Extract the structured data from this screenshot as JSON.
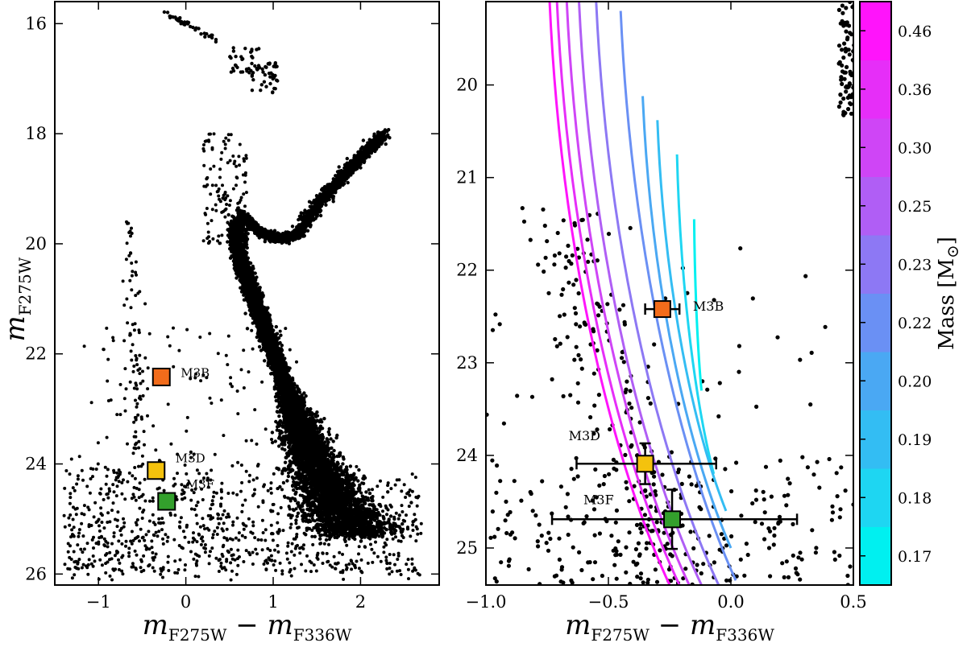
{
  "chart_data": [
    {
      "type": "scatter",
      "panel": "left",
      "xlabel": {
        "main": "m",
        "sub1": "F275W",
        "minus": " − ",
        "main2": "m",
        "sub2": "F336W"
      },
      "ylabel": {
        "main": "m",
        "sub": "F275W"
      },
      "xlim": [
        -1.5,
        2.9
      ],
      "ylim": [
        26.2,
        15.6
      ],
      "y_inverted": true,
      "xticks": [
        "−1",
        "0",
        "1",
        "2"
      ],
      "xtick_values": [
        -1,
        0,
        1,
        2
      ],
      "yticks": [
        "16",
        "18",
        "20",
        "22",
        "24",
        "26"
      ],
      "ytick_values": [
        16,
        18,
        20,
        22,
        24,
        26
      ],
      "series": [
        {
          "kind": "cluster-stars",
          "color": "#000000",
          "features": {
            "main_sequence_turnoff": [
              0.6,
              19.5
            ],
            "red_giant_branch": [
              [
                0.8,
                19.6
              ],
              [
                1.3,
                19.7
              ],
              [
                1.7,
                18.2
              ],
              [
                2.2,
                18.1
              ]
            ],
            "horizontal_branch": [
              [
                -0.6,
                15.8
              ],
              [
                0.3,
                16.3
              ],
              [
                0.6,
                16.6
              ],
              [
                0.9,
                17.2
              ]
            ],
            "main_sequence": [
              [
                0.6,
                19.6
              ],
              [
                0.8,
                21.5
              ],
              [
                1.2,
                23.0
              ],
              [
                1.6,
                24.5
              ],
              [
                1.8,
                25.2
              ]
            ]
          }
        }
      ],
      "annotations": [
        {
          "label": "M3B",
          "x": -0.28,
          "y": 22.42,
          "color": "#f26c1b"
        },
        {
          "label": "M3D",
          "x": -0.34,
          "y": 24.12,
          "color": "#f4c20d"
        },
        {
          "label": "M3F",
          "x": -0.22,
          "y": 24.68,
          "color": "#33a02c"
        }
      ]
    },
    {
      "type": "line",
      "panel": "right",
      "xlabel": {
        "main": "m",
        "sub1": "F275W",
        "minus": " − ",
        "main2": "m",
        "sub2": "F336W"
      },
      "xlim": [
        -1.0,
        0.5
      ],
      "ylim": [
        25.4,
        19.1
      ],
      "y_inverted": true,
      "xticks": [
        "−1.0",
        "−0.5",
        "0.0",
        "0.5"
      ],
      "xtick_values": [
        -1.0,
        -0.5,
        0.0,
        0.5
      ],
      "yticks": [
        "20",
        "21",
        "22",
        "23",
        "24",
        "25"
      ],
      "ytick_values": [
        20,
        21,
        22,
        23,
        24,
        25
      ],
      "tracks": [
        {
          "mass": 0.17,
          "color": "#00f0f0",
          "top": [
            -0.15,
            21.45
          ],
          "bottom": [
            -0.12,
            23.3
          ]
        },
        {
          "mass": 0.18,
          "color": "#1ed6f2",
          "top": [
            -0.22,
            20.75
          ],
          "bottom": [
            -0.07,
            24.2
          ]
        },
        {
          "mass": 0.19,
          "color": "#33bdf3",
          "top": [
            -0.3,
            20.38
          ],
          "bottom": [
            -0.02,
            24.6
          ]
        },
        {
          "mass": 0.2,
          "color": "#4aa8f3",
          "top": [
            -0.36,
            20.12
          ],
          "bottom": [
            0.0,
            25.0
          ]
        },
        {
          "mass": 0.22,
          "color": "#6a90f4",
          "top": [
            -0.45,
            19.2
          ],
          "bottom": [
            0.02,
            25.35
          ]
        },
        {
          "mass": 0.23,
          "color": "#8d78f4",
          "top": [
            -0.55,
            19.1
          ],
          "bottom": [
            -0.05,
            25.4
          ]
        },
        {
          "mass": 0.25,
          "color": "#b05ef5",
          "top": [
            -0.62,
            19.1
          ],
          "bottom": [
            -0.12,
            25.4
          ]
        },
        {
          "mass": 0.3,
          "color": "#cf45f6",
          "top": [
            -0.67,
            19.1
          ],
          "bottom": [
            -0.17,
            25.4
          ]
        },
        {
          "mass": 0.36,
          "color": "#e62ef8",
          "top": [
            -0.71,
            19.1
          ],
          "bottom": [
            -0.21,
            25.4
          ]
        },
        {
          "mass": 0.46,
          "color": "#ff14fb",
          "top": [
            -0.74,
            19.1
          ],
          "bottom": [
            -0.25,
            25.4
          ]
        }
      ],
      "annotations": [
        {
          "label": "M3B",
          "x": -0.28,
          "y": 22.42,
          "xerr": 0.07,
          "yerr": 0.0,
          "color": "#f26c1b"
        },
        {
          "label": "M3D",
          "x": -0.35,
          "y": 24.09,
          "xerr": [
            0.28,
            0.29
          ],
          "yerr": 0.22,
          "color": "#f4c20d"
        },
        {
          "label": "M3F",
          "x": -0.24,
          "y": 24.69,
          "xerr": [
            0.49,
            0.51
          ],
          "yerr": 0.32,
          "color": "#33a02c"
        }
      ]
    }
  ],
  "colorbar": {
    "label": "Mass [M",
    "label_suffix": "]",
    "sun_symbol": "⊙",
    "ticks": [
      "0.17",
      "0.18",
      "0.19",
      "0.20",
      "0.22",
      "0.23",
      "0.25",
      "0.30",
      "0.36",
      "0.46"
    ],
    "colors": [
      "#00f0f0",
      "#1ed6f2",
      "#33bdf3",
      "#4aa8f3",
      "#6a90f4",
      "#8d78f4",
      "#b05ef5",
      "#cf45f6",
      "#e62ef8",
      "#ff14fb"
    ]
  }
}
